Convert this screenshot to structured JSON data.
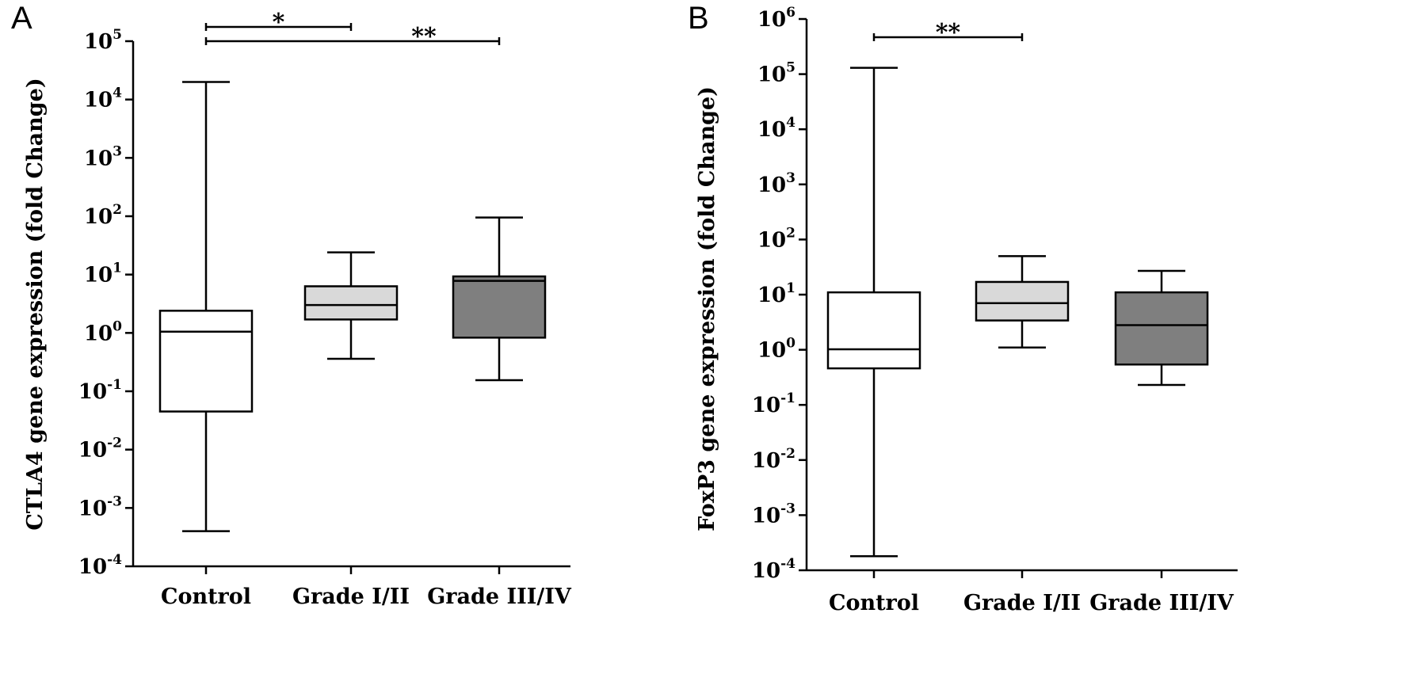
{
  "chart_data": [
    {
      "type": "box",
      "panel_label": "A",
      "ylabel": "CTLA4 gene expression (fold Change)",
      "yscale": "log",
      "ylim_exponents": [
        -4,
        5
      ],
      "categories": [
        "Control",
        "Grade I/II",
        "Grade III/IV"
      ],
      "boxes": [
        {
          "category": "Control",
          "min": 0.0004,
          "q1": 0.045,
          "median": 1.05,
          "q3": 2.4,
          "max": 20000,
          "fill": "#ffffff"
        },
        {
          "category": "Grade I/II",
          "min": 0.36,
          "q1": 1.7,
          "median": 3.0,
          "q3": 6.3,
          "max": 24,
          "fill": "#d9d9d9"
        },
        {
          "category": "Grade III/IV",
          "min": 0.155,
          "q1": 0.83,
          "median": 7.8,
          "q3": 9.3,
          "max": 95,
          "fill": "#7f7f7f"
        }
      ],
      "significance": [
        {
          "from": "Control",
          "to": "Grade I/II",
          "label": "*"
        },
        {
          "from": "Control",
          "to": "Grade III/IV",
          "label": "**"
        }
      ]
    },
    {
      "type": "box",
      "panel_label": "B",
      "ylabel": "FoxP3 gene expression (fold Change)",
      "yscale": "log",
      "ylim_exponents": [
        -4,
        6
      ],
      "categories": [
        "Control",
        "Grade I/II",
        "Grade III/IV"
      ],
      "boxes": [
        {
          "category": "Control",
          "min": 0.00018,
          "q1": 0.46,
          "median": 1.02,
          "q3": 11,
          "max": 130000,
          "fill": "#ffffff"
        },
        {
          "category": "Grade I/II",
          "min": 1.1,
          "q1": 3.4,
          "median": 7.0,
          "q3": 17,
          "max": 50,
          "fill": "#d9d9d9"
        },
        {
          "category": "Grade III/IV",
          "min": 0.23,
          "q1": 0.54,
          "median": 2.8,
          "q3": 11,
          "max": 27,
          "fill": "#7f7f7f"
        }
      ],
      "significance": [
        {
          "from": "Control",
          "to": "Grade I/II",
          "label": "**"
        }
      ]
    }
  ]
}
